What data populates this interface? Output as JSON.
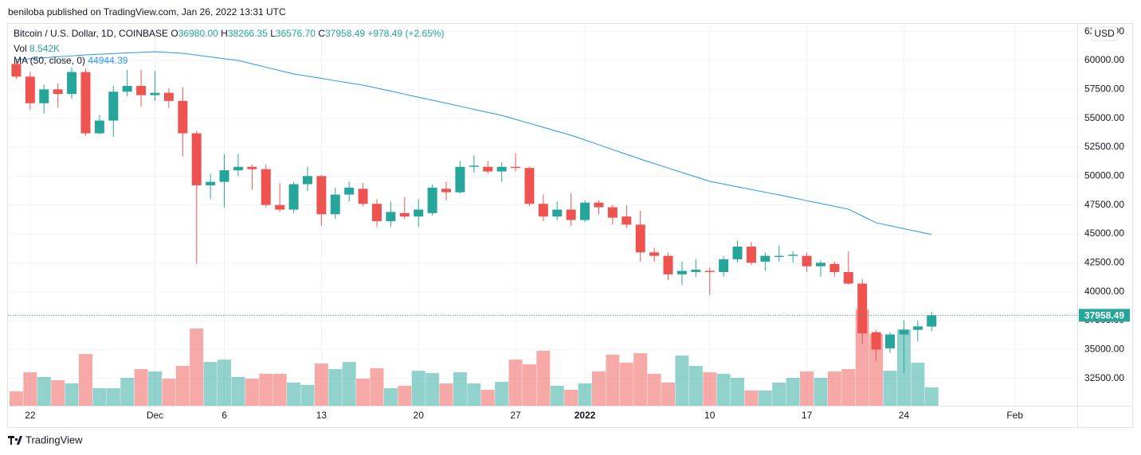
{
  "header": {
    "publisher": "beniloba published on TradingView.com, Jan 26, 2022 13:31 UTC",
    "footer_logo": "TradingView"
  },
  "chart_data": {
    "type": "candlestick",
    "title": "Bitcoin / U.S. Dollar, 1D, COINBASE",
    "ohlc_legend": [
      {
        "label": "O",
        "value": "36980.00"
      },
      {
        "label": "H",
        "value": "38266.35"
      },
      {
        "label": "L",
        "value": "36576.70"
      },
      {
        "label": "C",
        "value": "37958.49"
      }
    ],
    "change": "+978.49 (+2.65%)",
    "currency": "USD",
    "last_price_label": "37958.49",
    "grid": true,
    "up_color": "#26a69a",
    "down_color": "#ef5350",
    "x": [
      0,
      1,
      2,
      3,
      4,
      5,
      6,
      7,
      8,
      9,
      10,
      11,
      12,
      13,
      14,
      15,
      16,
      17,
      18,
      19,
      20,
      21,
      22,
      23,
      24,
      25,
      26,
      27,
      28,
      29,
      30,
      31,
      32,
      33,
      34,
      35,
      36,
      37,
      38,
      39,
      40,
      41,
      42,
      43,
      44,
      45,
      46,
      47,
      48,
      49,
      50,
      51,
      52,
      53,
      54,
      55,
      56,
      57,
      58,
      59,
      60,
      61,
      62,
      63,
      64,
      65,
      66
    ],
    "xlim": [
      -0.6,
      76.5
    ],
    "xticks": [
      {
        "value": 1,
        "label": "22"
      },
      {
        "value": 10,
        "label": "Dec"
      },
      {
        "value": 15,
        "label": "6"
      },
      {
        "value": 22,
        "label": "13"
      },
      {
        "value": 29,
        "label": "20"
      },
      {
        "value": 36,
        "label": "27"
      },
      {
        "value": 41,
        "label": "2022"
      },
      {
        "value": 50,
        "label": "10"
      },
      {
        "value": 57,
        "label": "17"
      },
      {
        "value": 64,
        "label": "24"
      },
      {
        "value": 72,
        "label": "Feb"
      }
    ],
    "ylim": [
      30140,
      63165
    ],
    "yticks": [
      {
        "value": 32500,
        "label": "32500.00"
      },
      {
        "value": 35000,
        "label": "35000.00"
      },
      {
        "value": 37500,
        "label": "37500.00"
      },
      {
        "value": 40000,
        "label": "40000.00"
      },
      {
        "value": 42500,
        "label": "42500.00"
      },
      {
        "value": 45000,
        "label": "45000.00"
      },
      {
        "value": 47500,
        "label": "47500.00"
      },
      {
        "value": 50000,
        "label": "50000.00"
      },
      {
        "value": 52500,
        "label": "52500.00"
      },
      {
        "value": 55000,
        "label": "55000.00"
      },
      {
        "value": 57500,
        "label": "57500.00"
      },
      {
        "value": 60000,
        "label": "60000.00"
      },
      {
        "value": 62500,
        "label": "62500.00"
      }
    ],
    "series": [
      {
        "name": "Bitcoin / U.S. Dollar",
        "open": [
          59700,
          58600,
          56300,
          57500,
          57100,
          59000,
          53700,
          54800,
          57300,
          57800,
          57000,
          57200,
          56500,
          53700,
          49200,
          49500,
          50500,
          50800,
          50600,
          47500,
          47100,
          49300,
          50000,
          46700,
          48400,
          48900,
          47600,
          46100,
          46800,
          46500,
          46800,
          48900,
          48600,
          50800,
          50800,
          50400,
          50800,
          50700,
          47600,
          46500,
          47100,
          46200,
          47700,
          47300,
          46500,
          45800,
          43400,
          43100,
          41500,
          41700,
          41800,
          41700,
          42800,
          43900,
          42600,
          43000,
          43100,
          43100,
          42200,
          42400,
          41700,
          40700,
          36500,
          35100,
          36300,
          36700,
          36980
        ],
        "high": [
          60000,
          59000,
          57900,
          58000,
          59400,
          59300,
          55300,
          57800,
          59200,
          59200,
          59100,
          57600,
          57700,
          53900,
          50200,
          51900,
          51900,
          51000,
          51000,
          49400,
          49500,
          50800,
          50100,
          49000,
          49500,
          49400,
          48000,
          47800,
          48200,
          48000,
          49300,
          49500,
          51300,
          51800,
          51300,
          51200,
          52000,
          50800,
          48400,
          47800,
          48500,
          47900,
          47900,
          47500,
          47500,
          47000,
          43800,
          43400,
          42600,
          42800,
          42100,
          43100,
          44400,
          44300,
          43400,
          44000,
          43500,
          43400,
          42700,
          42600,
          43500,
          41100,
          36700,
          36500,
          37500,
          37500,
          38266.35
        ],
        "low": [
          58400,
          55700,
          55400,
          55900,
          56700,
          53500,
          53600,
          53400,
          56900,
          56000,
          56500,
          55900,
          51700,
          42400,
          48000,
          47300,
          50000,
          48800,
          47300,
          46900,
          46800,
          48700,
          45700,
          46300,
          47800,
          47400,
          45600,
          45600,
          46300,
          45600,
          46600,
          47900,
          48500,
          50300,
          50200,
          49500,
          50400,
          47400,
          46100,
          46200,
          45700,
          46000,
          46700,
          45800,
          45500,
          42600,
          42600,
          41000,
          40600,
          41300,
          39700,
          41300,
          42500,
          42300,
          41800,
          42600,
          42500,
          41700,
          41300,
          41300,
          40600,
          35500,
          34000,
          34700,
          33000,
          35700,
          36576.7
        ],
        "close": [
          58600,
          56300,
          57500,
          57100,
          59000,
          53700,
          54800,
          57300,
          57800,
          57000,
          57200,
          56500,
          53700,
          49200,
          49500,
          50500,
          50800,
          50600,
          47500,
          47100,
          49300,
          50000,
          46700,
          48400,
          49000,
          47600,
          46100,
          46900,
          46500,
          47100,
          49000,
          48600,
          50800,
          50900,
          50400,
          50800,
          50700,
          47600,
          46500,
          47100,
          46200,
          47700,
          47300,
          46400,
          45800,
          43400,
          43100,
          41500,
          41800,
          41900,
          41700,
          42800,
          43900,
          42500,
          43100,
          43100,
          43200,
          42200,
          42500,
          41700,
          40700,
          36400,
          35000,
          36300,
          36700,
          37000,
          37958.49
        ]
      }
    ],
    "volume": {
      "name": "Vol",
      "value_label": "8.542K",
      "ylim": [
        0,
        178.2
      ],
      "values": [
        6.7,
        15.6,
        13.4,
        11.9,
        10.4,
        24.1,
        8.2,
        8.2,
        13.0,
        17.1,
        16.0,
        12.6,
        18.6,
        36.0,
        20.4,
        21.5,
        13.4,
        12.6,
        14.9,
        14.9,
        10.8,
        9.7,
        19.7,
        17.1,
        20.4,
        12.6,
        17.5,
        8.2,
        9.3,
        16.3,
        15.2,
        10.4,
        15.6,
        10.4,
        7.4,
        11.1,
        21.5,
        19.3,
        25.6,
        9.3,
        7.4,
        10.4,
        16.0,
        23.8,
        20.1,
        24.5,
        14.9,
        10.8,
        23.4,
        18.6,
        15.6,
        14.9,
        13.0,
        7.1,
        7.1,
        10.8,
        13.0,
        16.0,
        13.0,
        16.0,
        17.1,
        44.9,
        33.4,
        16.3,
        35.6,
        20.1,
        8.542
      ]
    },
    "ma": {
      "name": "MA (50, close, 0)",
      "value_label": "44944.39",
      "color": "#2196f3",
      "values": [
        60070,
        60150,
        60230,
        60320,
        60400,
        60480,
        60540,
        60590,
        60650,
        60700,
        60760,
        60690,
        60620,
        60460,
        60310,
        60150,
        60000,
        59710,
        59420,
        59120,
        58830,
        58640,
        58450,
        58250,
        58060,
        57870,
        57610,
        57350,
        57080,
        56820,
        56560,
        56300,
        56040,
        55770,
        55510,
        55250,
        54910,
        54560,
        54220,
        53870,
        53530,
        53120,
        52710,
        52290,
        51880,
        51470,
        51080,
        50700,
        50310,
        49930,
        49540,
        49310,
        49070,
        48840,
        48600,
        48370,
        48120,
        47870,
        47630,
        47380,
        47130,
        46550,
        45960,
        45710,
        45450,
        45200,
        44944.39
      ]
    }
  }
}
